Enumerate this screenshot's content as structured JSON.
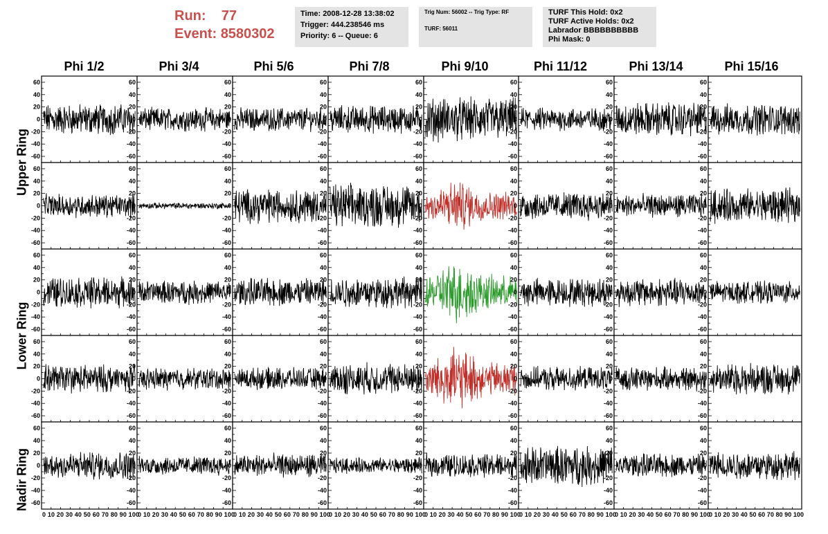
{
  "header": {
    "run_label": "Run:",
    "run_value": "77",
    "event_label": "Event:",
    "event_value": "8580302",
    "time_box": [
      "Time: 2008-12-28 13:38:02",
      "Trigger: 444.238546 ms",
      "Priority: 6 -- Queue: 6"
    ],
    "trig_box": [
      "Trig Num: 56002 -- Trig Type: RF",
      "",
      "TURF: 56011"
    ],
    "turf_box": [
      "TURF This Hold: 0x2",
      "TURF Active Holds: 0x2",
      "Labrador BBBBBBBBBB",
      "Phi Mask: 0"
    ],
    "colors": {
      "run_text": "#c8504c",
      "box_bg": "#e4e4e4"
    }
  },
  "columns": [
    "Phi 1/2",
    "Phi 3/4",
    "Phi 5/6",
    "Phi 7/8",
    "Phi 9/10",
    "Phi 11/12",
    "Phi 13/14",
    "Phi 15/16"
  ],
  "row_labels": [
    {
      "text": "Upper Ring"
    },
    {
      "text": "Lower Ring"
    },
    {
      "text": "Nadir Ring"
    }
  ],
  "chart_data": {
    "type": "line",
    "description_of_grid": "5 rows x 8 columns of waveform panels",
    "ylim": [
      -70,
      70
    ],
    "yticks": [
      -60,
      -40,
      -20,
      0,
      20,
      40,
      60
    ],
    "xlim": [
      0,
      100
    ],
    "xticks": [
      0,
      10,
      20,
      30,
      40,
      50,
      60,
      70,
      80,
      90,
      100
    ],
    "xtick_label_text": "0 10 20 30 40 50 60 70 80 90 100",
    "colors": {
      "normal": "#000000",
      "triggered": "#c0302a",
      "l3": "#2a9a2a"
    },
    "amplitudes": [
      [
        20,
        15,
        15,
        18,
        28,
        15,
        22,
        20
      ],
      [
        15,
        4,
        22,
        28,
        25,
        18,
        15,
        22
      ],
      [
        20,
        15,
        18,
        20,
        30,
        18,
        18,
        14
      ],
      [
        18,
        14,
        14,
        20,
        30,
        15,
        15,
        20
      ],
      [
        18,
        12,
        15,
        10,
        15,
        25,
        15,
        18
      ]
    ],
    "highlight": [
      {
        "row": 1,
        "col": 4,
        "color": "triggered"
      },
      {
        "row": 2,
        "col": 4,
        "color": "l3"
      },
      {
        "row": 3,
        "col": 4,
        "color": "triggered"
      }
    ]
  }
}
